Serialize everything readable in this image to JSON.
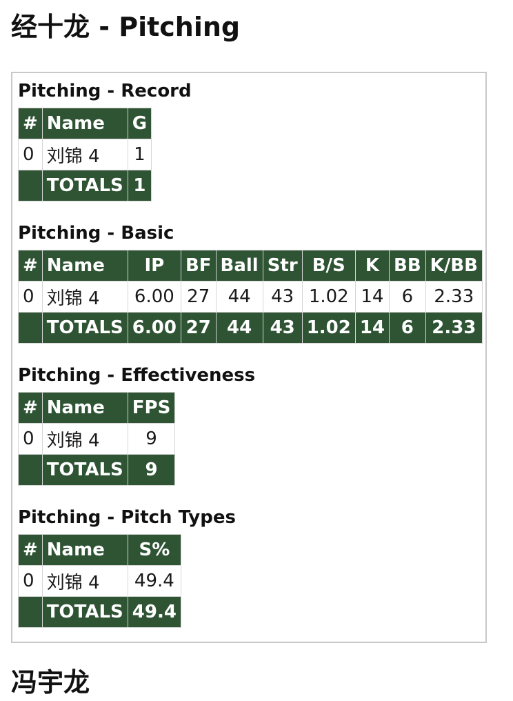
{
  "page": {
    "title": "经十龙 - Pitching",
    "next_title": "冯宇龙"
  },
  "record": {
    "heading": "Pitching - Record",
    "headers": [
      "#",
      "Name",
      "G"
    ],
    "row": {
      "num": "0",
      "name": "刘锦 4",
      "g": "1"
    },
    "totals": {
      "label": "TOTALS",
      "g": "1"
    }
  },
  "basic": {
    "heading": "Pitching - Basic",
    "headers": [
      "#",
      "Name",
      "IP",
      "BF",
      "Ball",
      "Str",
      "B/S",
      "K",
      "BB",
      "K/BB"
    ],
    "row": {
      "num": "0",
      "name": "刘锦 4",
      "ip": "6.00",
      "bf": "27",
      "ball": "44",
      "str": "43",
      "bs": "1.02",
      "k": "14",
      "bb": "6",
      "kbb": "2.33"
    },
    "totals": {
      "label": "TOTALS",
      "ip": "6.00",
      "bf": "27",
      "ball": "44",
      "str": "43",
      "bs": "1.02",
      "k": "14",
      "bb": "6",
      "kbb": "2.33"
    }
  },
  "effectiveness": {
    "heading": "Pitching - Effectiveness",
    "headers": [
      "#",
      "Name",
      "FPS"
    ],
    "row": {
      "num": "0",
      "name": "刘锦 4",
      "fps": "9"
    },
    "totals": {
      "label": "TOTALS",
      "fps": "9"
    }
  },
  "pitch_types": {
    "heading": "Pitching - Pitch Types",
    "headers": [
      "#",
      "Name",
      "S%"
    ],
    "row": {
      "num": "0",
      "name": "刘锦 4",
      "s_pct": "49.4"
    },
    "totals": {
      "label": "TOTALS",
      "s_pct": "49.4"
    }
  },
  "colors": {
    "header_green": "#2f5434",
    "border_gray": "#c8c8c8"
  }
}
